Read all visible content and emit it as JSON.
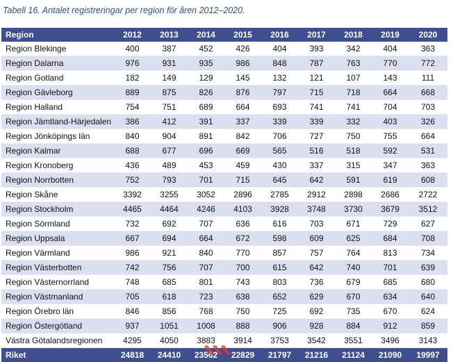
{
  "caption": "Tabell 16. Antalet registreringar per region för åren 2012–2020.",
  "header": {
    "region_label": "Region",
    "years": [
      "2012",
      "2013",
      "2014",
      "2015",
      "2016",
      "2017",
      "2018",
      "2019",
      "2020"
    ]
  },
  "rows": [
    {
      "region": "Region Blekinge",
      "values": [
        400,
        387,
        452,
        426,
        404,
        393,
        342,
        404,
        363
      ]
    },
    {
      "region": "Region Dalarna",
      "values": [
        976,
        931,
        935,
        986,
        848,
        787,
        763,
        770,
        772
      ]
    },
    {
      "region": "Region Gotland",
      "values": [
        182,
        149,
        129,
        145,
        132,
        121,
        107,
        143,
        111
      ]
    },
    {
      "region": "Region Gävleborg",
      "values": [
        889,
        875,
        826,
        876,
        797,
        715,
        718,
        664,
        668
      ]
    },
    {
      "region": "Region Halland",
      "values": [
        754,
        751,
        689,
        664,
        693,
        741,
        741,
        704,
        703
      ]
    },
    {
      "region": "Region Jämtland-Härjedalen",
      "values": [
        386,
        412,
        391,
        337,
        339,
        339,
        332,
        403,
        326
      ]
    },
    {
      "region": "Region Jönköpings län",
      "values": [
        840,
        904,
        891,
        842,
        706,
        727,
        750,
        755,
        664
      ]
    },
    {
      "region": "Region Kalmar",
      "values": [
        688,
        677,
        696,
        669,
        565,
        516,
        518,
        592,
        531
      ]
    },
    {
      "region": "Region Kronoberg",
      "values": [
        436,
        489,
        453,
        459,
        430,
        337,
        315,
        347,
        363
      ]
    },
    {
      "region": "Region Norrbotten",
      "values": [
        752,
        793,
        701,
        715,
        645,
        642,
        591,
        619,
        608
      ]
    },
    {
      "region": "Region Skåne",
      "values": [
        3392,
        3255,
        3052,
        2896,
        2785,
        2912,
        2898,
        2686,
        2722
      ]
    },
    {
      "region": "Region Stockholm",
      "values": [
        4465,
        4464,
        4246,
        4103,
        3928,
        3748,
        3730,
        3679,
        3512
      ]
    },
    {
      "region": "Region Sörmland",
      "values": [
        732,
        692,
        707,
        636,
        616,
        703,
        671,
        729,
        627
      ]
    },
    {
      "region": "Region Uppsala",
      "values": [
        667,
        694,
        664,
        672,
        598,
        609,
        625,
        684,
        708
      ]
    },
    {
      "region": "Region Värmland",
      "values": [
        986,
        921,
        840,
        770,
        857,
        757,
        764,
        813,
        734
      ]
    },
    {
      "region": "Region Västerbotten",
      "values": [
        742,
        756,
        707,
        700,
        615,
        642,
        740,
        701,
        639
      ]
    },
    {
      "region": "Region Västernorrland",
      "values": [
        748,
        685,
        801,
        743,
        803,
        736,
        679,
        685,
        680
      ]
    },
    {
      "region": "Region Västmanland",
      "values": [
        705,
        618,
        723,
        638,
        652,
        629,
        670,
        634,
        640
      ]
    },
    {
      "region": "Region Örebro län",
      "values": [
        846,
        856,
        768,
        750,
        725,
        692,
        735,
        670,
        624
      ]
    },
    {
      "region": "Region Östergötland",
      "values": [
        937,
        1051,
        1008,
        888,
        906,
        928,
        884,
        912,
        859
      ]
    },
    {
      "region": "Västra Götalandsregionen",
      "values": [
        4295,
        4050,
        3883,
        3914,
        3753,
        3542,
        3551,
        3496,
        3143
      ]
    }
  ],
  "total": {
    "label": "Riket",
    "values": [
      24818,
      24410,
      23562,
      22829,
      21797,
      21216,
      21124,
      21090,
      19997
    ]
  },
  "colors": {
    "header_bg": "#3d4f8f",
    "stripe_bg": "#dcdff0",
    "caption": "#2e4f8a",
    "watermark": "#e53935"
  }
}
